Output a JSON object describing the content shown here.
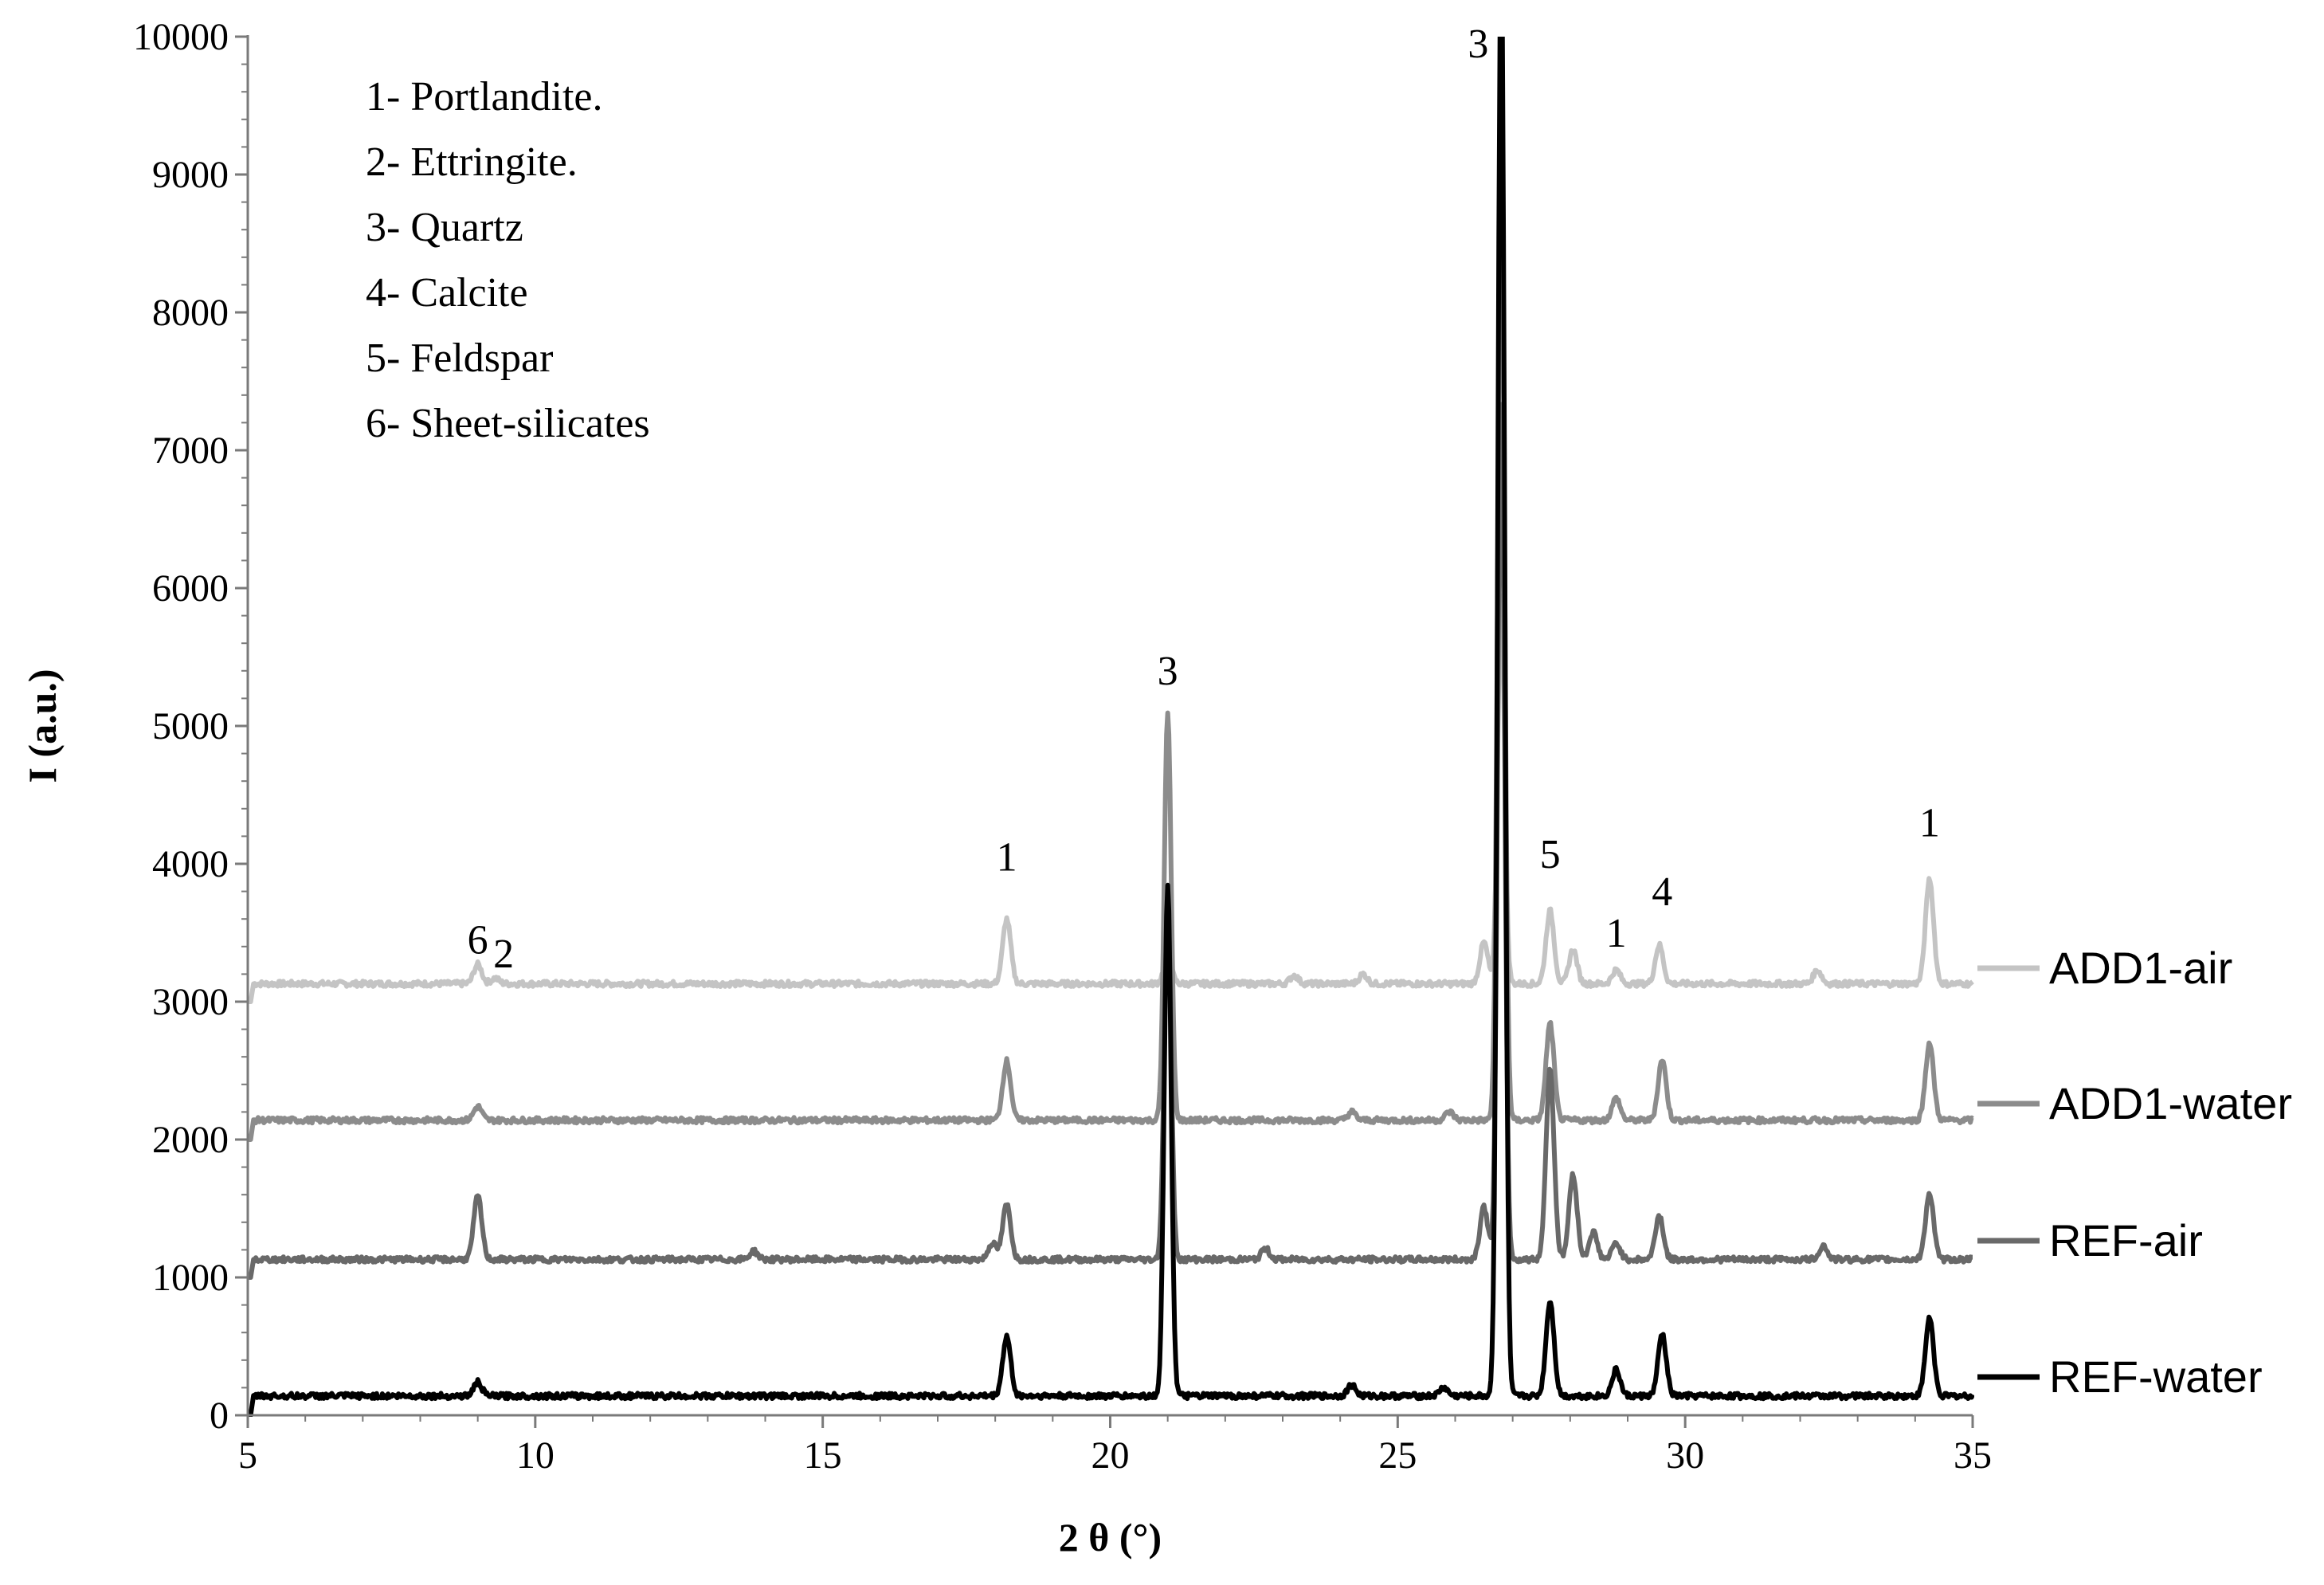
{
  "chart_data": {
    "type": "line",
    "title": "",
    "xlabel": "2 θ (°)",
    "ylabel": "I (a.u.)",
    "xlim": [
      5,
      35
    ],
    "ylim": [
      0,
      10000
    ],
    "x_ticks": [
      5,
      10,
      15,
      20,
      25,
      30,
      35
    ],
    "x_tick_labels": [
      "5",
      "10",
      "15",
      "20",
      "25",
      "30",
      "35"
    ],
    "y_ticks": [
      0,
      1000,
      2000,
      3000,
      4000,
      5000,
      6000,
      7000,
      8000,
      9000,
      10000
    ],
    "y_tick_labels": [
      "0",
      "1000",
      "2000",
      "3000",
      "4000",
      "5000",
      "6000",
      "7000",
      "8000",
      "9000",
      "10000"
    ],
    "grid": false,
    "legend_position": "right",
    "phase_key": [
      "1- Portlandite.",
      "2- Ettringite.",
      "3- Quartz",
      "4- Calcite",
      "5- Feldspar",
      "6- Sheet-silicates"
    ],
    "series": [
      {
        "name": "ADD1-air",
        "color": "#c4c4c4",
        "baseline": 3130,
        "start": 3000,
        "peaks": [
          [
            9.0,
            140
          ],
          [
            9.3,
            40
          ],
          [
            18.2,
            470
          ],
          [
            21.0,
            180
          ],
          [
            23.2,
            60
          ],
          [
            24.4,
            70
          ],
          [
            26.5,
            300
          ],
          [
            26.8,
            2800
          ],
          [
            27.65,
            530
          ],
          [
            28.05,
            250
          ],
          [
            28.8,
            100
          ],
          [
            29.55,
            280
          ],
          [
            32.3,
            100
          ],
          [
            34.25,
            760
          ]
        ]
      },
      {
        "name": "ADD1-water",
        "color": "#8c8c8c",
        "baseline": 2140,
        "start": 2000,
        "peaks": [
          [
            9.0,
            100
          ],
          [
            18.2,
            430
          ],
          [
            21.0,
            2950
          ],
          [
            24.2,
            60
          ],
          [
            25.9,
            60
          ],
          [
            26.8,
            6700
          ],
          [
            27.65,
            700
          ],
          [
            28.8,
            160
          ],
          [
            29.6,
            440
          ],
          [
            34.25,
            560
          ]
        ]
      },
      {
        "name": "REF-air",
        "color": "#696969",
        "baseline": 1130,
        "start": 1000,
        "peaks": [
          [
            9.0,
            460
          ],
          [
            13.8,
            60
          ],
          [
            17.95,
            120
          ],
          [
            18.2,
            400
          ],
          [
            21.0,
            2580
          ],
          [
            22.7,
            80
          ],
          [
            26.5,
            380
          ],
          [
            26.8,
            6200
          ],
          [
            27.65,
            1380
          ],
          [
            28.05,
            620
          ],
          [
            28.4,
            200
          ],
          [
            28.8,
            120
          ],
          [
            29.55,
            320
          ],
          [
            32.4,
            100
          ],
          [
            34.25,
            480
          ]
        ]
      },
      {
        "name": "REF-water",
        "color": "#000000",
        "baseline": 140,
        "start": 0,
        "peaks": [
          [
            9.0,
            100
          ],
          [
            18.2,
            430
          ],
          [
            21.0,
            3700
          ],
          [
            24.2,
            80
          ],
          [
            25.8,
            60
          ],
          [
            26.8,
            10500
          ],
          [
            27.65,
            690
          ],
          [
            28.8,
            190
          ],
          [
            29.6,
            450
          ],
          [
            34.25,
            570
          ]
        ]
      }
    ],
    "annotations": [
      {
        "text": "6",
        "x": 9.0,
        "y": 3350
      },
      {
        "text": "2",
        "x": 9.45,
        "y": 3250
      },
      {
        "text": "1",
        "x": 18.2,
        "y": 3950
      },
      {
        "text": "3",
        "x": 21.0,
        "y": 5300
      },
      {
        "text": "3",
        "x": 26.4,
        "y": 9850
      },
      {
        "text": "5",
        "x": 27.65,
        "y": 3970
      },
      {
        "text": "1",
        "x": 28.8,
        "y": 3400
      },
      {
        "text": "4",
        "x": 29.6,
        "y": 3700
      },
      {
        "text": "1",
        "x": 34.25,
        "y": 4200
      }
    ]
  }
}
